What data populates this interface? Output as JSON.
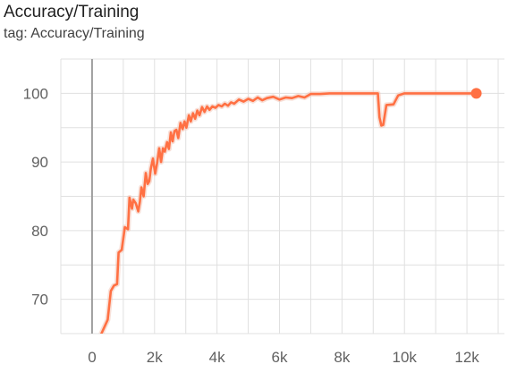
{
  "header": {
    "title": "Accuracy/Training",
    "tag": "tag: Accuracy/Training"
  },
  "colors": {
    "series": "#ff7043",
    "smoothed_shadow": "#f3c6b8",
    "grid": "#e0e0e0",
    "axis_zero": "#9e9e9e",
    "tick_text": "#616161"
  },
  "chart_data": {
    "type": "line",
    "title": "Accuracy/Training",
    "xlabel": "",
    "ylabel": "",
    "xlim": [
      -1000,
      13200
    ],
    "ylim": [
      65,
      105
    ],
    "grid": true,
    "legend": "none",
    "x_ticks": [
      0,
      2000,
      4000,
      6000,
      8000,
      10000,
      12000
    ],
    "x_tick_labels": [
      "0",
      "2k",
      "4k",
      "6k",
      "8k",
      "10k",
      "12k"
    ],
    "y_ticks": [
      70,
      80,
      90,
      100
    ],
    "y_tick_labels": [
      "70",
      "80",
      "90",
      "100"
    ],
    "series": [
      {
        "x": [
          300,
          400,
          500,
          600,
          700,
          800,
          850,
          950,
          1050,
          1150,
          1200,
          1280,
          1320,
          1400,
          1480,
          1530,
          1580,
          1650,
          1720,
          1780,
          1830,
          1880,
          1950,
          2020,
          2080,
          2150,
          2210,
          2270,
          2330,
          2400,
          2460,
          2520,
          2580,
          2640,
          2700,
          2760,
          2830,
          2900,
          2960,
          3020,
          3100,
          3160,
          3230,
          3300,
          3370,
          3440,
          3520,
          3600,
          3680,
          3760,
          3850,
          3950,
          4050,
          4150,
          4250,
          4350,
          4450,
          4550,
          4700,
          4850,
          5000,
          5150,
          5300,
          5450,
          5600,
          5800,
          6000,
          6200,
          6400,
          6600,
          6800,
          7000,
          7300,
          7600,
          8000,
          8500,
          9000,
          9150,
          9200,
          9260,
          9320,
          9420,
          9650,
          9800,
          10000,
          10500,
          11000,
          11500,
          12000,
          12300
        ],
        "y": [
          65.0,
          66.0,
          67.0,
          71.2,
          72.0,
          72.2,
          76.8,
          77.2,
          80.5,
          80.2,
          84.8,
          83.2,
          84.5,
          84.0,
          82.8,
          84.2,
          86.3,
          85.0,
          88.4,
          86.8,
          87.2,
          89.0,
          90.5,
          88.3,
          89.8,
          92.0,
          90.0,
          92.0,
          91.5,
          92.9,
          91.9,
          94.3,
          93.0,
          94.5,
          94.7,
          93.5,
          95.7,
          94.8,
          95.9,
          95.0,
          96.8,
          95.9,
          97.1,
          96.3,
          97.5,
          96.8,
          98.0,
          97.3,
          98.1,
          97.6,
          98.1,
          97.9,
          98.3,
          98.1,
          98.5,
          98.2,
          98.7,
          98.5,
          99.1,
          98.8,
          99.2,
          98.9,
          99.4,
          99.0,
          99.3,
          99.5,
          99.1,
          99.4,
          99.3,
          99.6,
          99.4,
          99.9,
          99.9,
          100.0,
          100.0,
          100.0,
          100.0,
          100.0,
          96.5,
          95.3,
          95.4,
          98.3,
          98.4,
          99.7,
          100.0,
          100.0,
          100.0,
          100.0,
          100.0,
          100.0
        ]
      }
    ]
  }
}
